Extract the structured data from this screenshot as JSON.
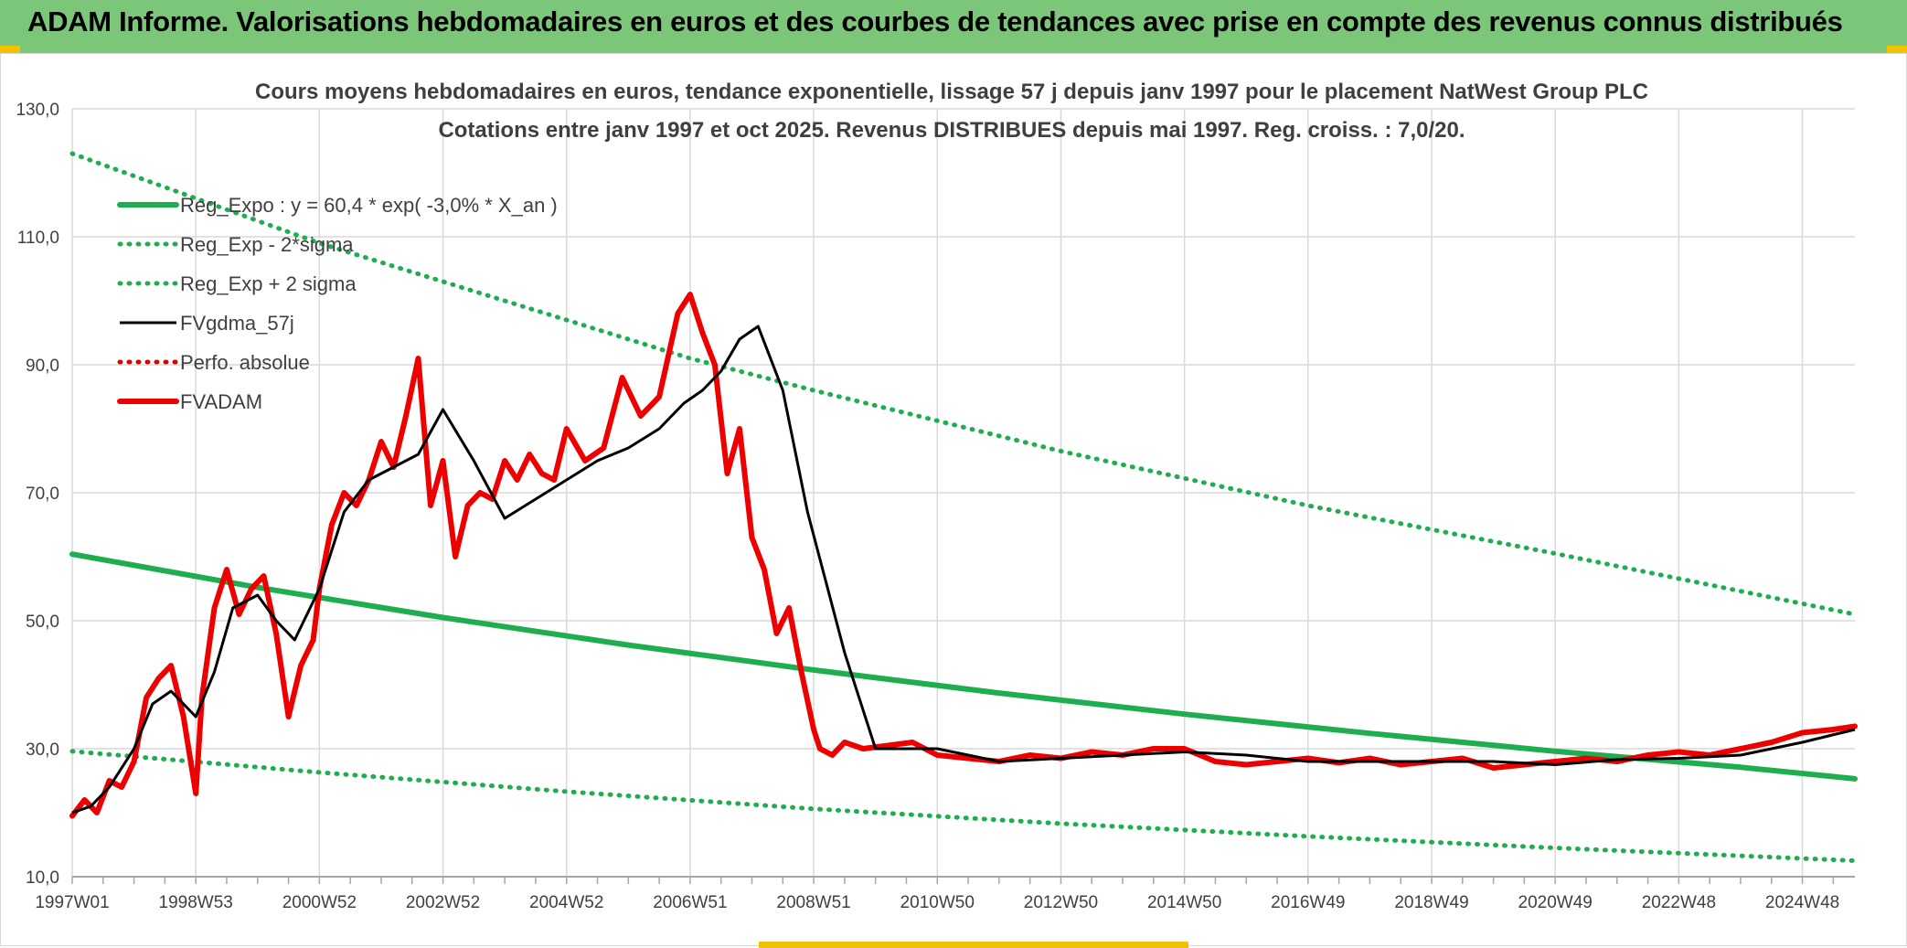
{
  "header": {
    "title": "ADAM Informe. Valorisations hebdomadaires en euros et des courbes de tendances avec prise en compte des revenus connus distribués"
  },
  "colors": {
    "banner": "#7cc67a",
    "trend": "#1fae4f",
    "sigma": "#1fae4f",
    "fvgdma": "#000000",
    "perfo": "#e00000",
    "fvadam": "#ee0000",
    "grid": "#d9d9d9"
  },
  "chart_data": {
    "type": "line",
    "title": "Cours moyens hebdomadaires en euros, tendance exponentielle, lissage 57 j depuis janv 1997 pour le placement NatWest Group PLC",
    "subtitle": "Cotations entre janv 1997 et oct 2025. Revenus DISTRIBUES depuis mai 1997. Reg. croiss. : 7,0/20.",
    "xlabel": "",
    "ylabel": "",
    "ylim": [
      10,
      130
    ],
    "yticks": [
      "10,0",
      "30,0",
      "50,0",
      "70,0",
      "90,0",
      "110,0",
      "130,0"
    ],
    "xlim": [
      1997.0,
      2025.85
    ],
    "xticks": [
      {
        "label": "1997W01",
        "x": 1997.0
      },
      {
        "label": "1998W53",
        "x": 1999.0
      },
      {
        "label": "2000W52",
        "x": 2001.0
      },
      {
        "label": "2002W52",
        "x": 2003.0
      },
      {
        "label": "2004W52",
        "x": 2005.0
      },
      {
        "label": "2006W51",
        "x": 2007.0
      },
      {
        "label": "2008W51",
        "x": 2009.0
      },
      {
        "label": "2010W50",
        "x": 2011.0
      },
      {
        "label": "2012W50",
        "x": 2013.0
      },
      {
        "label": "2014W50",
        "x": 2015.0
      },
      {
        "label": "2016W49",
        "x": 2017.0
      },
      {
        "label": "2018W49",
        "x": 2019.0
      },
      {
        "label": "2020W49",
        "x": 2021.0
      },
      {
        "label": "2022W48",
        "x": 2023.0
      },
      {
        "label": "2024W48",
        "x": 2025.0
      }
    ],
    "grid": true,
    "legend_position": "top-left",
    "series": [
      {
        "name": "Reg_Expo : y = 60,4 * exp( -3,0% *  X_an )",
        "style": "solid-thick",
        "color": "#1fae4f",
        "x": [
          1997.0,
          2000.0,
          2003.0,
          2006.0,
          2009.0,
          2012.0,
          2015.0,
          2018.0,
          2021.0,
          2024.0,
          2025.85
        ],
        "y": [
          60.4,
          55.2,
          50.5,
          46.2,
          42.3,
          38.7,
          35.4,
          32.4,
          29.6,
          27.1,
          25.3
        ]
      },
      {
        "name": "Reg_Exp - 2*sigma",
        "style": "dotted",
        "color": "#1fae4f",
        "x": [
          1997.0,
          2001.0,
          2005.0,
          2009.0,
          2013.0,
          2017.0,
          2021.0,
          2025.85
        ],
        "y": [
          29.6,
          26.3,
          23.3,
          20.6,
          18.3,
          16.3,
          14.5,
          12.5
        ]
      },
      {
        "name": "Reg_Exp + 2 sigma",
        "style": "dotted",
        "color": "#1fae4f",
        "x": [
          1997.0,
          2001.0,
          2005.0,
          2007.0,
          2009.0,
          2013.0,
          2017.0,
          2021.0,
          2025.85
        ],
        "y": [
          123.0,
          109.0,
          97.0,
          91.0,
          86.0,
          76.5,
          68.0,
          60.5,
          51.0
        ]
      },
      {
        "name": "FVgdma_57j",
        "style": "solid",
        "color": "#000000",
        "x": [
          1997.0,
          1997.3,
          1997.6,
          1998.0,
          1998.3,
          1998.6,
          1999.0,
          1999.3,
          1999.6,
          2000.0,
          2000.3,
          2000.6,
          2001.0,
          2001.4,
          2001.8,
          2002.2,
          2002.6,
          2003.0,
          2003.5,
          2004.0,
          2004.5,
          2005.0,
          2005.5,
          2006.0,
          2006.5,
          2006.9,
          2007.2,
          2007.5,
          2007.8,
          2008.1,
          2008.5,
          2008.9,
          2009.2,
          2009.5,
          2010.0,
          2011.0,
          2012.0,
          2013.0,
          2014.0,
          2015.0,
          2016.0,
          2017.0,
          2018.0,
          2019.0,
          2020.0,
          2021.0,
          2022.0,
          2023.0,
          2024.0,
          2025.0,
          2025.85
        ],
        "y": [
          20.0,
          21.0,
          24.0,
          30.0,
          37.0,
          39.0,
          35.0,
          42.0,
          52.0,
          54.0,
          50.0,
          47.0,
          55.0,
          67.0,
          72.0,
          74.0,
          76.0,
          83.0,
          75.0,
          66.0,
          69.0,
          72.0,
          75.0,
          77.0,
          80.0,
          84.0,
          86.0,
          89.0,
          94.0,
          96.0,
          86.0,
          67.0,
          56.0,
          45.0,
          30.0,
          30.0,
          28.0,
          28.5,
          29.0,
          29.5,
          29.0,
          28.0,
          28.0,
          28.0,
          28.0,
          27.5,
          28.3,
          28.5,
          29.0,
          31.0,
          33.0
        ]
      },
      {
        "name": "Perfo. absolue",
        "style": "dotted",
        "color": "#e00000",
        "x": [],
        "y": []
      },
      {
        "name": "FVADAM",
        "style": "solid-thick",
        "color": "#ee0000",
        "x": [
          1997.0,
          1997.2,
          1997.4,
          1997.6,
          1997.8,
          1998.0,
          1998.2,
          1998.4,
          1998.6,
          1998.8,
          1999.0,
          1999.1,
          1999.3,
          1999.5,
          1999.7,
          1999.9,
          2000.1,
          2000.3,
          2000.5,
          2000.7,
          2000.9,
          2001.0,
          2001.2,
          2001.4,
          2001.6,
          2001.8,
          2002.0,
          2002.2,
          2002.4,
          2002.6,
          2002.8,
          2003.0,
          2003.2,
          2003.4,
          2003.6,
          2003.8,
          2004.0,
          2004.2,
          2004.4,
          2004.6,
          2004.8,
          2005.0,
          2005.3,
          2005.6,
          2005.9,
          2006.2,
          2006.5,
          2006.8,
          2007.0,
          2007.2,
          2007.4,
          2007.6,
          2007.8,
          2008.0,
          2008.2,
          2008.4,
          2008.6,
          2008.8,
          2009.0,
          2009.1,
          2009.3,
          2009.5,
          2009.8,
          2010.2,
          2010.6,
          2011.0,
          2011.5,
          2012.0,
          2012.5,
          2013.0,
          2013.5,
          2014.0,
          2014.5,
          2015.0,
          2015.5,
          2016.0,
          2016.5,
          2017.0,
          2017.5,
          2018.0,
          2018.5,
          2019.0,
          2019.5,
          2020.0,
          2020.5,
          2021.0,
          2021.5,
          2022.0,
          2022.5,
          2023.0,
          2023.5,
          2024.0,
          2024.5,
          2025.0,
          2025.5,
          2025.85
        ],
        "y": [
          19.5,
          22.0,
          20.0,
          25.0,
          24.0,
          28.0,
          38.0,
          41.0,
          43.0,
          35.0,
          23.0,
          38.0,
          52.0,
          58.0,
          51.0,
          55.0,
          57.0,
          48.0,
          35.0,
          43.0,
          47.0,
          55.0,
          65.0,
          70.0,
          68.0,
          72.0,
          78.0,
          74.0,
          82.0,
          91.0,
          68.0,
          75.0,
          60.0,
          68.0,
          70.0,
          69.0,
          75.0,
          72.0,
          76.0,
          73.0,
          72.0,
          80.0,
          75.0,
          77.0,
          88.0,
          82.0,
          85.0,
          98.0,
          101.0,
          95.0,
          90.0,
          73.0,
          80.0,
          63.0,
          58.0,
          48.0,
          52.0,
          42.0,
          33.0,
          30.0,
          29.0,
          31.0,
          30.0,
          30.5,
          31.0,
          29.0,
          28.5,
          28.0,
          29.0,
          28.5,
          29.5,
          29.0,
          30.0,
          30.0,
          28.0,
          27.5,
          28.0,
          28.5,
          27.8,
          28.5,
          27.5,
          28.0,
          28.5,
          27.0,
          27.5,
          28.0,
          28.5,
          28.0,
          29.0,
          29.5,
          29.0,
          30.0,
          31.0,
          32.5,
          33.0,
          33.5
        ]
      }
    ]
  }
}
